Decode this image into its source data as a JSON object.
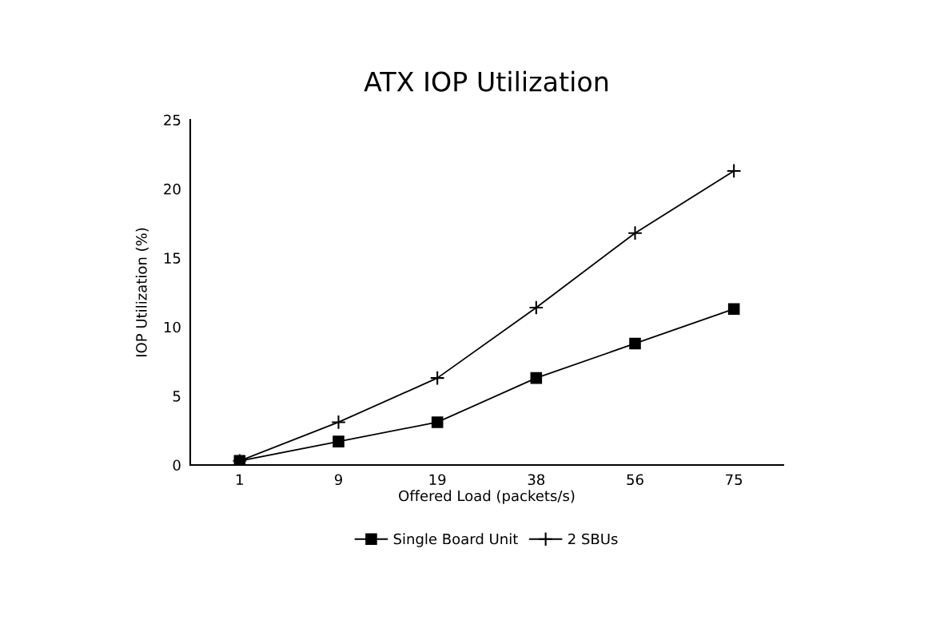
{
  "chart_data": {
    "type": "line",
    "title": "ATX IOP Utilization",
    "xlabel": "Offered Load (packets/s)",
    "ylabel": "IOP Utilization (%)",
    "categories": [
      "1",
      "9",
      "19",
      "38",
      "56",
      "75"
    ],
    "series": [
      {
        "name": "Single Board Unit",
        "color": "#000000",
        "marker": "square",
        "values": [
          0.3,
          1.7,
          3.1,
          6.3,
          8.8,
          11.3
        ]
      },
      {
        "name": "2 SBUs",
        "color": "#000000",
        "marker": "cross",
        "values": [
          0.3,
          3.1,
          6.3,
          11.4,
          16.8,
          21.3
        ]
      }
    ],
    "ylim": [
      0,
      25
    ],
    "yticks": [
      0,
      5,
      10,
      15,
      20,
      25
    ],
    "grid": false,
    "legend": "bottom",
    "line_style": "solid"
  }
}
